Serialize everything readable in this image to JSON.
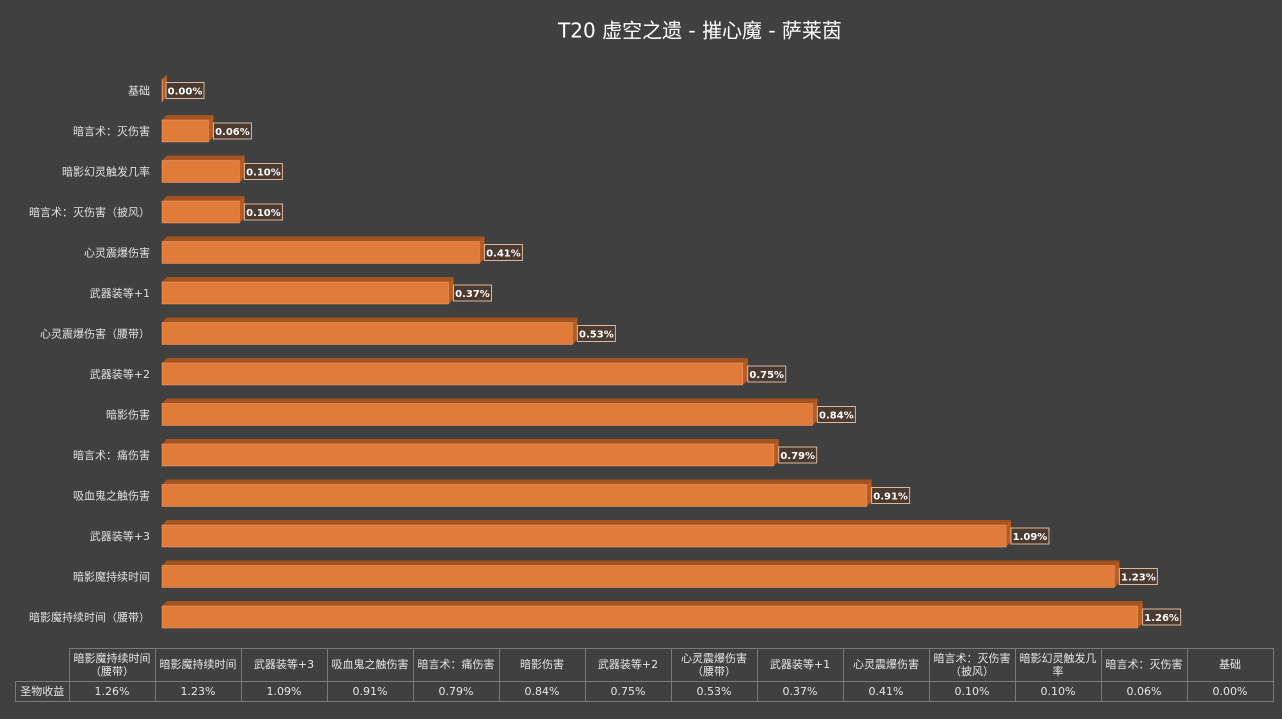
{
  "chart_data": {
    "type": "bar",
    "orientation": "horizontal",
    "title": "T20 虚空之遗 - 摧心魔 - 萨莱茵",
    "categories": [
      "暗影魔持续时间（腰带）",
      "暗影魔持续时间",
      "武器装等+3",
      "吸血鬼之触伤害",
      "暗言术：痛伤害",
      "暗影伤害",
      "武器装等+2",
      "心灵震爆伤害（腰带）",
      "武器装等+1",
      "心灵震爆伤害",
      "暗言术：灭伤害（披风）",
      "暗影幻灵触发几率",
      "暗言术：灭伤害",
      "基础"
    ],
    "series": [
      {
        "name": "圣物收益",
        "color": "#e07b39",
        "values": [
          1.26,
          1.23,
          1.09,
          0.91,
          0.79,
          0.84,
          0.75,
          0.53,
          0.37,
          0.41,
          0.1,
          0.1,
          0.06,
          0.0
        ],
        "value_labels": [
          "1.26%",
          "1.23%",
          "1.09%",
          "0.91%",
          "0.79%",
          "0.84%",
          "0.75%",
          "0.53%",
          "0.37%",
          "0.41%",
          "0.10%",
          "0.10%",
          "0.06%",
          "0.00%"
        ]
      }
    ],
    "xlim": [
      0,
      1.4
    ],
    "data_table": true
  }
}
